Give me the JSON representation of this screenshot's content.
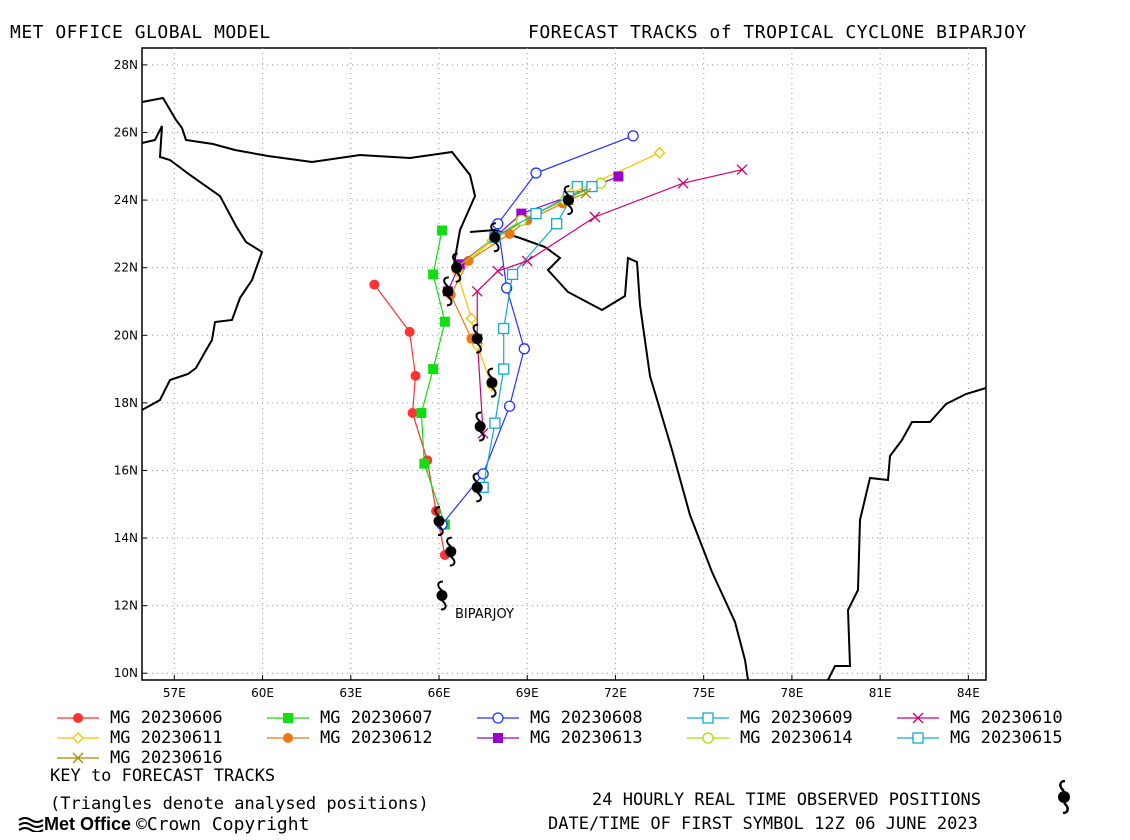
{
  "header": {
    "left_title": "MET OFFICE GLOBAL MODEL",
    "right_title": "FORECAST TRACKS of TROPICAL CYCLONE BIPARJOY"
  },
  "map": {
    "lon_ticks": [
      "57E",
      "60E",
      "63E",
      "66E",
      "69E",
      "72E",
      "75E",
      "78E",
      "81E",
      "84E"
    ],
    "lat_ticks": [
      "28N",
      "26N",
      "24N",
      "22N",
      "20N",
      "18N",
      "16N",
      "14N",
      "12N",
      "10N"
    ],
    "lon_range": [
      55.9,
      84.6
    ],
    "lat_range": [
      9.8,
      28.5
    ],
    "grid": true,
    "storm_label": "BIPARJOY",
    "coast_color": "#000000",
    "observed_positions": [
      [
        66.1,
        12.3
      ],
      [
        66.4,
        13.6
      ],
      [
        66.0,
        14.5
      ],
      [
        67.3,
        15.5
      ],
      [
        67.4,
        17.3
      ],
      [
        67.8,
        18.6
      ],
      [
        67.3,
        19.9
      ],
      [
        66.3,
        21.3
      ],
      [
        66.6,
        22.0
      ],
      [
        67.9,
        22.9
      ],
      [
        70.4,
        24.0
      ]
    ],
    "observed_symbol": "cyclone-symbol-icon"
  },
  "chart_data": {
    "type": "line",
    "xlabel": "",
    "ylabel": "",
    "series": [
      {
        "name": "MG 20230606",
        "color": "#ff3333",
        "marker": "filled-circle",
        "points": [
          [
            66.2,
            13.5
          ],
          [
            65.9,
            14.8
          ],
          [
            65.6,
            16.3
          ],
          [
            65.1,
            17.7
          ],
          [
            65.2,
            18.8
          ],
          [
            65.0,
            20.1
          ],
          [
            63.8,
            21.5
          ]
        ]
      },
      {
        "name": "MG 20230607",
        "color": "#11dd11",
        "marker": "filled-square",
        "points": [
          [
            66.2,
            14.4
          ],
          [
            65.5,
            16.2
          ],
          [
            65.4,
            17.7
          ],
          [
            65.8,
            19.0
          ],
          [
            66.2,
            20.4
          ],
          [
            65.8,
            21.8
          ],
          [
            66.1,
            23.1
          ]
        ]
      },
      {
        "name": "MG 20230608",
        "color": "#2233ff",
        "marker": "open-circle",
        "points": [
          [
            66.1,
            14.4
          ],
          [
            67.5,
            15.9
          ],
          [
            68.4,
            17.9
          ],
          [
            68.9,
            19.6
          ],
          [
            68.3,
            21.4
          ],
          [
            68.0,
            23.3
          ],
          [
            69.3,
            24.8
          ],
          [
            72.6,
            25.9
          ]
        ]
      },
      {
        "name": "MG 20230609",
        "color": "#11aacc",
        "marker": "open-square",
        "points": [
          [
            67.5,
            15.5
          ],
          [
            67.9,
            17.4
          ],
          [
            68.2,
            19.0
          ],
          [
            68.2,
            20.2
          ],
          [
            68.5,
            21.8
          ],
          [
            70.0,
            23.3
          ],
          [
            70.7,
            24.4
          ]
        ]
      },
      {
        "name": "MG 20230610",
        "color": "#cc0077",
        "marker": "x-mark",
        "points": [
          [
            67.5,
            17.1
          ],
          [
            67.3,
            19.9
          ],
          [
            67.3,
            21.3
          ],
          [
            68.0,
            21.9
          ],
          [
            69.0,
            22.2
          ],
          [
            71.3,
            23.5
          ],
          [
            74.3,
            24.5
          ],
          [
            76.3,
            24.9
          ]
        ]
      },
      {
        "name": "MG 20230611",
        "color": "#f5c400",
        "marker": "open-diamond",
        "points": [
          [
            67.8,
            18.5
          ],
          [
            67.3,
            19.7
          ],
          [
            67.1,
            20.5
          ],
          [
            66.6,
            21.9
          ],
          [
            67.8,
            22.8
          ],
          [
            70.5,
            24.2
          ],
          [
            73.5,
            25.4
          ]
        ]
      },
      {
        "name": "MG 20230612",
        "color": "#ee7711",
        "marker": "filled-circle",
        "points": [
          [
            67.1,
            19.9
          ],
          [
            66.4,
            21.2
          ],
          [
            67.0,
            22.2
          ],
          [
            68.4,
            23.0
          ],
          [
            69.0,
            23.4
          ],
          [
            70.2,
            23.9
          ]
        ]
      },
      {
        "name": "MG 20230613",
        "color": "#9900cc",
        "marker": "filled-square",
        "points": [
          [
            66.3,
            21.3
          ],
          [
            66.7,
            22.1
          ],
          [
            67.9,
            22.9
          ],
          [
            68.8,
            23.6
          ],
          [
            70.4,
            24.1
          ],
          [
            72.1,
            24.7
          ]
        ]
      },
      {
        "name": "MG 20230614",
        "color": "#aadd00",
        "marker": "open-circle",
        "points": [
          [
            66.6,
            22.0
          ],
          [
            67.9,
            22.9
          ],
          [
            68.8,
            23.4
          ],
          [
            70.3,
            24.0
          ],
          [
            71.5,
            24.5
          ]
        ]
      },
      {
        "name": "MG 20230615",
        "color": "#11aacc",
        "marker": "open-square",
        "points": [
          [
            67.9,
            22.9
          ],
          [
            69.3,
            23.6
          ],
          [
            70.4,
            24.1
          ],
          [
            71.2,
            24.4
          ]
        ]
      },
      {
        "name": "MG 20230616",
        "color": "#aa8800",
        "marker": "x-mark",
        "points": [
          [
            70.4,
            24.0
          ],
          [
            71.0,
            24.2
          ]
        ]
      }
    ]
  },
  "legend": {
    "items": [
      {
        "label": "MG 20230606",
        "color": "#ff3333",
        "marker": "filled-circle"
      },
      {
        "label": "MG 20230607",
        "color": "#11dd11",
        "marker": "filled-square"
      },
      {
        "label": "MG 20230608",
        "color": "#2233ff",
        "marker": "open-circle"
      },
      {
        "label": "MG 20230609",
        "color": "#11aacc",
        "marker": "open-square"
      },
      {
        "label": "MG 20230610",
        "color": "#cc0077",
        "marker": "x-mark"
      },
      {
        "label": "MG 20230611",
        "color": "#f5c400",
        "marker": "open-diamond"
      },
      {
        "label": "MG 20230612",
        "color": "#ee7711",
        "marker": "filled-circle"
      },
      {
        "label": "MG 20230613",
        "color": "#9900cc",
        "marker": "filled-square"
      },
      {
        "label": "MG 20230614",
        "color": "#aadd00",
        "marker": "open-circle"
      },
      {
        "label": "MG 20230615",
        "color": "#11aacc",
        "marker": "open-square"
      },
      {
        "label": "MG 20230616",
        "color": "#aa8800",
        "marker": "x-mark"
      }
    ],
    "key_title": "KEY to FORECAST TRACKS",
    "key_note": "(Triangles denote analysed positions)"
  },
  "footer": {
    "observed_note": "24 HOURLY REAL TIME OBSERVED POSITIONS",
    "first_symbol": "DATE/TIME OF FIRST SYMBOL 12Z 06 JUNE 2023",
    "logo_text": "Met Office",
    "copyright": "©Crown Copyright"
  }
}
